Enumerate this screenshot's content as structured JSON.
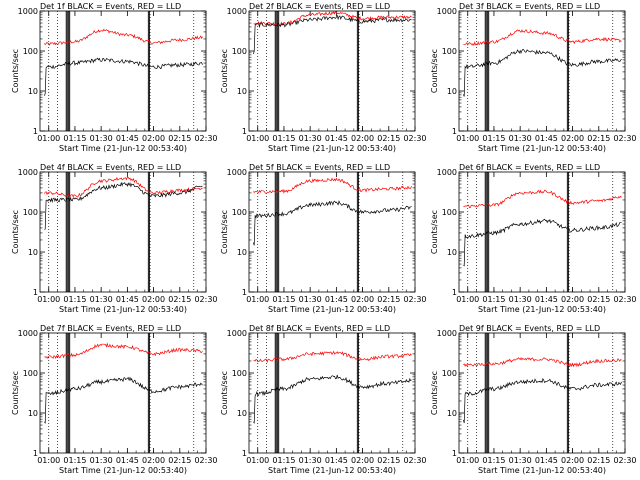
{
  "chart_data": {
    "type": "line",
    "ylabel": "Counts/sec",
    "xlabel": "Start Time (21-Jun-12 00:53:40)",
    "yscale": "log",
    "ylim": [
      1,
      1000
    ],
    "xlim": [
      "00:55",
      "02:30"
    ],
    "x_ticks": [
      "01:00",
      "01:15",
      "01:30",
      "01:45",
      "02:00",
      "02:15",
      "02:30"
    ],
    "y_ticks": [
      "1",
      "10",
      "100",
      "1000"
    ],
    "colors": {
      "events": "#000000",
      "lld": "#ff0000"
    },
    "panels": [
      {
        "title": "Det 1f BLACK = Events, RED = LLD",
        "events_level": [
          40,
          50,
          60,
          55,
          40,
          45,
          50
        ],
        "lld_level": [
          150,
          170,
          330,
          250,
          160,
          190,
          220
        ]
      },
      {
        "title": "Det 2f BLACK = Events, RED = LLD",
        "events_level": [
          450,
          450,
          600,
          700,
          550,
          600,
          600
        ],
        "lld_level": [
          500,
          480,
          800,
          900,
          650,
          700,
          700
        ]
      },
      {
        "title": "Det 3f BLACK = Events, RED = LLD",
        "events_level": [
          40,
          50,
          100,
          90,
          45,
          55,
          60
        ],
        "lld_level": [
          150,
          170,
          320,
          280,
          170,
          200,
          180
        ]
      },
      {
        "title": "Det 4f BLACK = Events, RED = LLD",
        "events_level": [
          200,
          200,
          400,
          500,
          250,
          300,
          450
        ],
        "lld_level": [
          300,
          250,
          600,
          700,
          300,
          350,
          400
        ]
      },
      {
        "title": "Det 5f BLACK = Events, RED = LLD",
        "events_level": [
          80,
          90,
          150,
          170,
          100,
          110,
          130
        ],
        "lld_level": [
          320,
          330,
          600,
          650,
          350,
          380,
          420
        ]
      },
      {
        "title": "Det 6f BLACK = Events, RED = LLD",
        "events_level": [
          25,
          30,
          50,
          60,
          35,
          40,
          50
        ],
        "lld_level": [
          140,
          150,
          300,
          320,
          170,
          190,
          250
        ]
      },
      {
        "title": "Det 7f BLACK = Events, RED = LLD",
        "events_level": [
          30,
          40,
          60,
          70,
          35,
          45,
          55
        ],
        "lld_level": [
          250,
          280,
          500,
          450,
          300,
          380,
          350
        ]
      },
      {
        "title": "Det 8f BLACK = Events, RED = LLD",
        "events_level": [
          30,
          40,
          70,
          80,
          45,
          55,
          65
        ],
        "lld_level": [
          200,
          220,
          300,
          320,
          220,
          260,
          280
        ]
      },
      {
        "title": "Det 9f BLACK = Events, RED = LLD",
        "events_level": [
          30,
          40,
          60,
          65,
          40,
          50,
          55
        ],
        "lld_level": [
          160,
          170,
          220,
          220,
          160,
          200,
          210
        ]
      }
    ]
  }
}
